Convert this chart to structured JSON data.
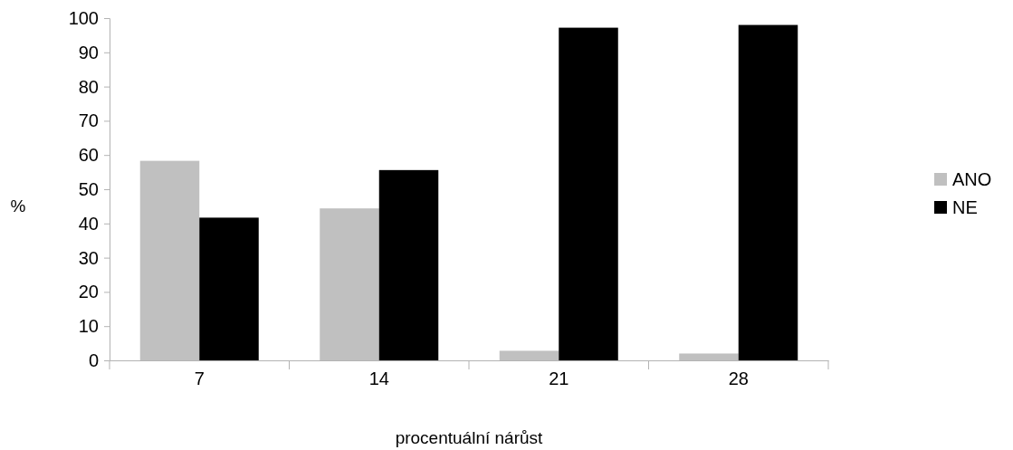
{
  "chart_data": {
    "type": "bar",
    "xlabel": "procentuální nárůst",
    "ylabel": "%",
    "categories": [
      "7",
      "14",
      "21",
      "28"
    ],
    "series": [
      {
        "name": "ANO",
        "color": "#c0c0c0",
        "values": [
          58.3,
          44.4,
          2.8,
          2.0
        ]
      },
      {
        "name": "NE",
        "color": "#000000",
        "values": [
          41.7,
          55.6,
          97.2,
          98.0
        ]
      }
    ],
    "ylim": [
      0,
      100
    ],
    "yticks": [
      0,
      10,
      20,
      30,
      40,
      50,
      60,
      70,
      80,
      90,
      100
    ],
    "grid": false,
    "legend": "right"
  }
}
